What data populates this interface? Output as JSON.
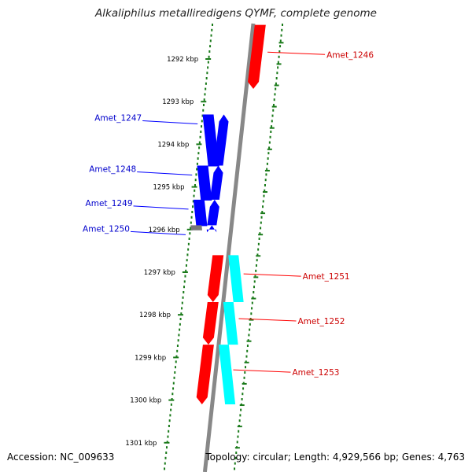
{
  "title": "Alkaliphilus metalliredigens QYMF, complete genome",
  "footer": {
    "accession": "Accession: NC_009633",
    "topology": "Topology: circular; Length: 4,929,566 bp; Genes: 4,763"
  },
  "colors": {
    "forward_strand": "#ff0000",
    "forward_label": "#cc0000",
    "reverse_strand": "#0000ff",
    "reverse_label": "#0000cc",
    "other_feature": "#00ffff",
    "unassigned": "#777777",
    "ruler_dots": "#1a7a1a",
    "backbone": "#888888"
  },
  "ruler": [
    {
      "label": "1292 kbp"
    },
    {
      "label": "1293 kbp"
    },
    {
      "label": "1294 kbp"
    },
    {
      "label": "1295 kbp"
    },
    {
      "label": "1296 kbp"
    },
    {
      "label": "1297 kbp"
    },
    {
      "label": "1298 kbp"
    },
    {
      "label": "1299 kbp"
    },
    {
      "label": "1300 kbp"
    },
    {
      "label": "1301 kbp"
    }
  ],
  "genes": {
    "forward": [
      {
        "label": "Amet_1246",
        "start_kbp": 1291.2,
        "end_kbp": 1292.7
      },
      {
        "label": "Amet_1251",
        "start_kbp": 1296.6,
        "end_kbp": 1297.7
      },
      {
        "label": "Amet_1252",
        "start_kbp": 1297.7,
        "end_kbp": 1298.7
      },
      {
        "label": "Amet_1253",
        "start_kbp": 1298.7,
        "end_kbp": 1300.1
      }
    ],
    "reverse": [
      {
        "label": "Amet_1247",
        "start_kbp": 1293.3,
        "end_kbp": 1294.5
      },
      {
        "label": "Amet_1248",
        "start_kbp": 1294.5,
        "end_kbp": 1295.3
      },
      {
        "label": "Amet_1249",
        "start_kbp": 1295.3,
        "end_kbp": 1295.9
      },
      {
        "label": "Amet_1250",
        "start_kbp": 1295.9,
        "end_kbp": 1296.0
      }
    ]
  }
}
